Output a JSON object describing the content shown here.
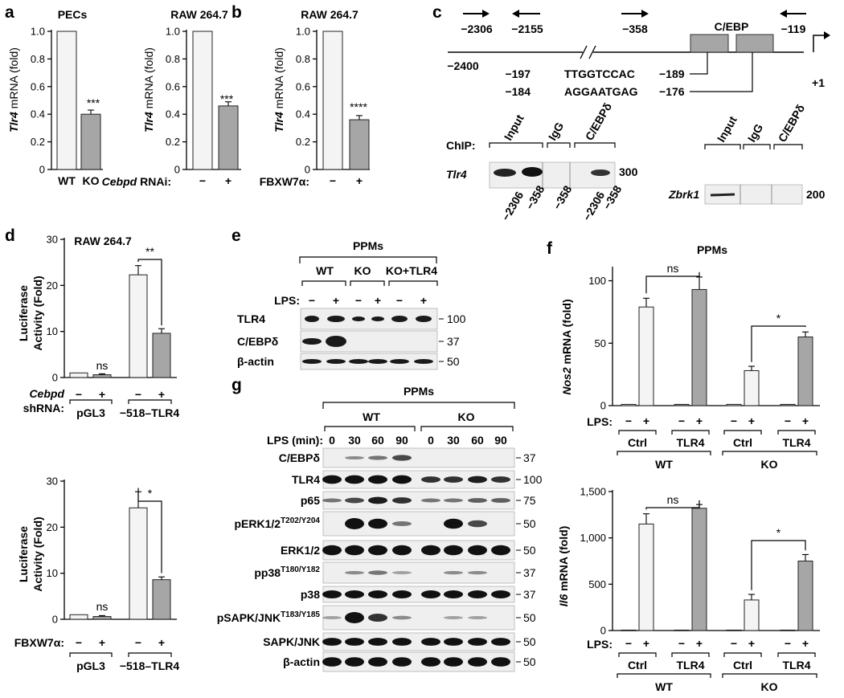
{
  "figure": {
    "panel_labels": [
      "a",
      "b",
      "c",
      "d",
      "e",
      "f",
      "g"
    ],
    "mw_markers": {
      "c_tlr4": "300",
      "c_zbrk": "200",
      "e": [
        "100",
        "37",
        "50"
      ],
      "g": [
        "37",
        "100",
        "75",
        "50",
        "50",
        "37",
        "37",
        "50",
        "50",
        "50"
      ]
    }
  },
  "a1": {
    "title": "PECs",
    "ylabel_gene": "Tlr4",
    "ylabel_rest": " mRNA (fold)",
    "xticks": [
      "WT",
      "KO"
    ],
    "sig": "***"
  },
  "a2": {
    "title": "RAW 264.7",
    "ylabel_gene": "Tlr4",
    "ylabel_rest": " mRNA (fold)",
    "cond_gene": "Cebpd",
    "cond_rest": " RNAi:",
    "xticks": [
      "−",
      "+"
    ],
    "sig": "***"
  },
  "b": {
    "title": "RAW 264.7",
    "ylabel_gene": "Tlr4",
    "ylabel_rest": " mRNA (fold)",
    "cond": "FBXW7α:",
    "xticks": [
      "−",
      "+"
    ],
    "sig": "****"
  },
  "c": {
    "primers": [
      "−2306",
      "−2155",
      "−358",
      "−119"
    ],
    "left_end": "−2400",
    "tss": "+1",
    "box_label": "C/EBP",
    "site1_start": "−197",
    "site1_seq": "TTGGTCCAC",
    "site1_end": "−189",
    "site2_start": "−184",
    "site2_seq": "AGGAATGAG",
    "site2_end": "−176",
    "chip_label": "ChIP:",
    "tlr4_gene": "Tlr4",
    "zbrk_gene": "Zbrk1",
    "lanes_tlr4": [
      "Input",
      "IgG",
      "C/EBPδ"
    ],
    "lanes_zbrk": [
      "Input",
      "IgG",
      "C/EBPδ"
    ],
    "primer_lanes": [
      "−2306",
      "−358",
      "−358",
      "−2306",
      "−358"
    ]
  },
  "d": {
    "title": "RAW 264.7",
    "ylabel1": "Luciferase",
    "ylabel2": "Activity (Fold)",
    "top_cond_gene": "Cebpd",
    "top_cond2": "shRNA:",
    "bot_cond": "FBXW7α:",
    "groups": [
      "pGL3",
      "−518–TLR4"
    ],
    "signs": [
      "−",
      "+",
      "−",
      "+"
    ],
    "top_sig": [
      "ns",
      "**"
    ],
    "bot_sig": [
      "ns",
      "*"
    ]
  },
  "e": {
    "title": "PPMs",
    "groups": [
      "WT",
      "KO",
      "KO+TLR4"
    ],
    "lps": "LPS:",
    "signs": [
      "−",
      "+",
      "−",
      "+",
      "−",
      "+"
    ],
    "rows": [
      "TLR4",
      "C/EBPδ",
      "β-actin"
    ]
  },
  "f": {
    "title": "PPMs",
    "top_ylabel_gene": "Nos2",
    "top_ylabel_rest": " mRNA (fold)",
    "bot_ylabel_gene": "Il6",
    "bot_ylabel_rest": " mRNA (fold)",
    "lps": "LPS:",
    "signs": [
      "−",
      "+",
      "−",
      "+",
      "−",
      "+",
      "−",
      "+"
    ],
    "sub": [
      "Ctrl",
      "TLR4",
      "Ctrl",
      "TLR4"
    ],
    "groups": [
      "WT",
      "KO"
    ],
    "top_sig": [
      "ns",
      "*"
    ],
    "bot_sig": [
      "ns",
      "*"
    ]
  },
  "g": {
    "title": "PPMs",
    "groups": [
      "WT",
      "KO"
    ],
    "lps": "LPS (min):",
    "times": [
      "0",
      "30",
      "60",
      "90",
      "0",
      "30",
      "60",
      "90"
    ],
    "rows": [
      {
        "name": "C/EBPδ",
        "sup": ""
      },
      {
        "name": "TLR4",
        "sup": ""
      },
      {
        "name": "p65",
        "sup": ""
      },
      {
        "name": "pERK1/2",
        "sup": "T202/Y204"
      },
      {
        "name": "ERK1/2",
        "sup": ""
      },
      {
        "name": "pp38",
        "sup": "T180/Y182"
      },
      {
        "name": "p38",
        "sup": ""
      },
      {
        "name": "pSAPK/JNK",
        "sup": "T183/Y185"
      },
      {
        "name": "SAPK/JNK",
        "sup": ""
      },
      {
        "name": "β-actin",
        "sup": ""
      }
    ]
  },
  "chart_data": [
    {
      "type": "bar",
      "panel": "a",
      "title": "PECs",
      "ylabel": "Tlr4 mRNA (fold)",
      "categories": [
        "WT",
        "KO"
      ],
      "values": [
        1.0,
        0.4
      ],
      "errors": [
        0,
        0.03
      ],
      "ylim": [
        0,
        1.0
      ],
      "yticks": [
        "0",
        "0.2",
        "0.4",
        "0.6",
        "0.8",
        "1.0"
      ]
    },
    {
      "type": "bar",
      "panel": "a",
      "title": "RAW 264.7",
      "ylabel": "Tlr4 mRNA (fold)",
      "categories": [
        "−",
        "+"
      ],
      "values": [
        1.0,
        0.46
      ],
      "errors": [
        0,
        0.03
      ],
      "ylim": [
        0,
        1.0
      ],
      "yticks": [
        "0",
        "0.2",
        "0.4",
        "0.6",
        "0.8",
        "1.0"
      ]
    },
    {
      "type": "bar",
      "panel": "b",
      "title": "RAW 264.7",
      "ylabel": "Tlr4 mRNA (fold)",
      "categories": [
        "−",
        "+"
      ],
      "values": [
        1.0,
        0.36
      ],
      "errors": [
        0,
        0.03
      ],
      "ylim": [
        0,
        1.0
      ],
      "yticks": [
        "0",
        "0.2",
        "0.4",
        "0.6",
        "0.8",
        "1.0"
      ]
    },
    {
      "type": "bar",
      "panel": "d",
      "ylabel": "Luciferase Activity (Fold)",
      "categories": [
        "pGL3 −",
        "pGL3 +",
        "−518–TLR4 −",
        "−518–TLR4 +"
      ],
      "values": [
        1.0,
        0.6,
        22.3,
        9.6
      ],
      "errors": [
        0,
        0.2,
        2.0,
        1.0
      ],
      "ylim": [
        0,
        30
      ],
      "yticks": [
        "0",
        "10",
        "20",
        "30"
      ]
    },
    {
      "type": "bar",
      "panel": "d",
      "ylabel": "Luciferase Activity (Fold)",
      "categories": [
        "pGL3 −",
        "pGL3 +",
        "−518–TLR4 −",
        "−518–TLR4 +"
      ],
      "values": [
        1.0,
        0.6,
        24.2,
        8.6
      ],
      "errors": [
        0,
        0.2,
        3.5,
        0.6
      ],
      "ylim": [
        0,
        30
      ],
      "yticks": [
        "0",
        "10",
        "20",
        "30"
      ]
    },
    {
      "type": "bar",
      "panel": "f",
      "ylabel": "Nos2 mRNA (fold)",
      "categories": [
        "WT Ctrl −",
        "WT Ctrl +",
        "WT TLR4 −",
        "WT TLR4 +",
        "KO Ctrl −",
        "KO Ctrl +",
        "KO TLR4 −",
        "KO TLR4 +"
      ],
      "values": [
        1,
        79,
        1,
        93,
        1,
        28,
        1,
        55
      ],
      "errors": [
        0,
        7,
        0,
        10,
        0,
        3.5,
        0,
        4
      ],
      "ylim": [
        0,
        110
      ],
      "yticks": [
        "0",
        "50",
        "100"
      ]
    },
    {
      "type": "bar",
      "panel": "f",
      "ylabel": "Il6 mRNA (fold)",
      "categories": [
        "WT Ctrl −",
        "WT Ctrl +",
        "WT TLR4 −",
        "WT TLR4 +",
        "KO Ctrl −",
        "KO Ctrl +",
        "KO TLR4 −",
        "KO TLR4 +"
      ],
      "values": [
        5,
        1150,
        5,
        1320,
        5,
        330,
        5,
        750
      ],
      "errors": [
        0,
        110,
        0,
        40,
        0,
        60,
        0,
        70
      ],
      "ylim": [
        0,
        1500
      ],
      "yticks": [
        "0",
        "500",
        "1,000",
        "1,500"
      ]
    }
  ]
}
